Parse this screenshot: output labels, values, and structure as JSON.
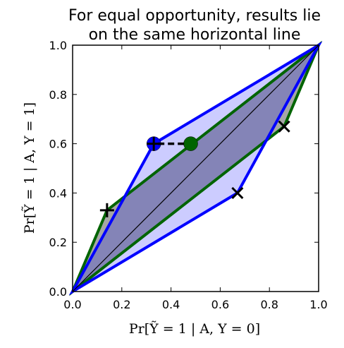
{
  "chart_data": {
    "type": "scatter",
    "title_lines": [
      "For equal opportunity, results lie",
      "on the same horizontal line"
    ],
    "xlabel": "Pr[Ỹ = 1 | A, Y = 0]",
    "ylabel": "Pr[Ỹ = 1 | A, Y = 1]",
    "xlim": [
      0.0,
      1.0
    ],
    "ylim": [
      0.0,
      1.0
    ],
    "x_ticks": [
      "0.0",
      "0.2",
      "0.4",
      "0.6",
      "0.8",
      "1.0"
    ],
    "y_ticks": [
      "0.0",
      "0.2",
      "0.4",
      "0.6",
      "0.8",
      "1.0"
    ],
    "grid": false,
    "series": [
      {
        "kind": "polygon",
        "points": [
          [
            0,
            0
          ],
          [
            0.14,
            0.33
          ],
          [
            1,
            1
          ],
          [
            0.86,
            0.67
          ]
        ],
        "color": "#006400",
        "fill": "#808080"
      },
      {
        "kind": "polygon",
        "points": [
          [
            0,
            0
          ],
          [
            0.33,
            0.6
          ],
          [
            1,
            1
          ],
          [
            0.67,
            0.4
          ]
        ],
        "color": "#0000ff",
        "fill": "#0000ff"
      },
      {
        "kind": "line",
        "points": [
          [
            0,
            0
          ],
          [
            1,
            1
          ]
        ],
        "color": "#000000"
      },
      {
        "kind": "dashed-line",
        "points": [
          [
            0.33,
            0.6
          ],
          [
            0.48,
            0.6
          ]
        ],
        "color": "#000000"
      },
      {
        "kind": "plus-markers",
        "points": [
          [
            0.14,
            0.33
          ],
          [
            0.33,
            0.6
          ]
        ],
        "color": "#000000"
      },
      {
        "kind": "x-markers",
        "points": [
          [
            0.67,
            0.4
          ],
          [
            0.86,
            0.67
          ]
        ],
        "color": "#000000"
      },
      {
        "kind": "dot",
        "points": [
          [
            0.33,
            0.6
          ]
        ],
        "color": "#0000ff"
      },
      {
        "kind": "dot",
        "points": [
          [
            0.48,
            0.6
          ]
        ],
        "color": "#006400"
      }
    ],
    "colors": {
      "blue": "#0000ff",
      "green": "#006400",
      "black": "#000000"
    }
  }
}
